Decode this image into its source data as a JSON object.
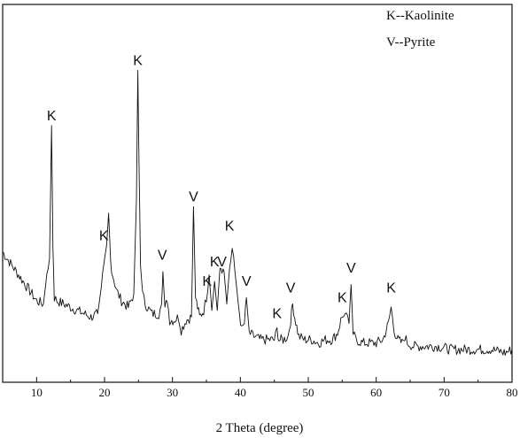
{
  "chart_data": {
    "type": "line",
    "xlabel": "2 Theta (degree)",
    "ylabel": "",
    "xlim": [
      5,
      80
    ],
    "ylim": [
      0,
      100
    ],
    "x_ticks": [
      "10",
      "20",
      "30",
      "40",
      "50",
      "60",
      "70",
      "80"
    ],
    "x_tick_values": [
      10,
      20,
      30,
      40,
      50,
      60,
      70,
      80
    ],
    "grid": false,
    "legend_position": "top-right",
    "legend": [
      "K--Kaolinite",
      "V--Pyrite"
    ],
    "series": [
      {
        "color": "#111111",
        "x": [
          5,
          6,
          7,
          8,
          9,
          10,
          11,
          11.5,
          11.9,
          12.2,
          12.4,
          12.6,
          13,
          14,
          15,
          16,
          17,
          18,
          19,
          19.7,
          20.0,
          20.3,
          20.6,
          20.9,
          21.2,
          21.8,
          22.5,
          23.5,
          24.3,
          24.7,
          24.9,
          25.1,
          25.3,
          25.6,
          26.0,
          27.0,
          28.0,
          28.4,
          28.6,
          28.9,
          29.2,
          29.6,
          30.2,
          30.9,
          31.3,
          32.0,
          32.8,
          33.1,
          33.4,
          34.0,
          34.6,
          35.0,
          35.4,
          35.8,
          36.2,
          36.6,
          37.0,
          37.6,
          38.0,
          38.4,
          38.8,
          39.2,
          39.7,
          40.2,
          40.6,
          40.9,
          41.3,
          42.0,
          43.0,
          44.0,
          45.0,
          45.4,
          45.7,
          46.3,
          47.0,
          47.4,
          47.7,
          48.0,
          48.6,
          49.5,
          50.5,
          51.5,
          52.5,
          53.5,
          54.3,
          54.8,
          55.2,
          55.6,
          56.0,
          56.3,
          56.6,
          57.0,
          58.0,
          59.0,
          60.0,
          61.0,
          61.8,
          62.2,
          62.6,
          63.2,
          63.8,
          64.2,
          64.6,
          65.5,
          67.0,
          69.0,
          71.0,
          73.0,
          75.0,
          77.0,
          79.0,
          80.0
        ],
        "y": [
          36,
          33,
          30,
          27,
          24,
          21,
          20,
          29,
          34,
          75,
          38,
          22,
          21,
          20,
          19,
          18,
          17,
          16,
          17,
          28,
          33,
          38,
          48,
          33,
          29,
          24,
          21,
          19,
          23,
          52,
          92,
          60,
          32,
          23,
          20,
          17,
          17,
          20,
          30,
          18,
          22,
          15,
          15,
          16,
          12,
          15,
          16,
          50,
          22,
          16,
          18,
          22,
          29,
          18,
          27,
          18,
          32,
          30,
          20,
          31,
          37,
          30,
          20,
          12,
          14,
          22,
          11,
          10,
          9,
          9,
          9,
          12,
          9,
          9,
          10,
          15,
          20,
          16,
          10,
          9,
          9,
          8,
          9,
          9,
          11,
          15,
          17,
          16,
          14,
          26,
          11,
          9,
          8,
          8,
          8,
          9,
          14,
          19,
          12,
          9,
          8,
          10,
          8,
          7,
          7,
          7,
          6,
          6,
          6,
          6,
          5,
          6
        ]
      }
    ],
    "annotations": [
      {
        "text": "K",
        "x": 12.2,
        "y": 75
      },
      {
        "text": "K",
        "x": 19.9,
        "y": 38
      },
      {
        "text": "K",
        "x": 24.9,
        "y": 92
      },
      {
        "text": "V",
        "x": 28.5,
        "y": 32
      },
      {
        "text": "V",
        "x": 33.1,
        "y": 50
      },
      {
        "text": "K",
        "x": 35.1,
        "y": 24
      },
      {
        "text": "K",
        "x": 36.2,
        "y": 30
      },
      {
        "text": "V",
        "x": 37.3,
        "y": 30
      },
      {
        "text": "K",
        "x": 38.4,
        "y": 41
      },
      {
        "text": "V",
        "x": 40.9,
        "y": 24
      },
      {
        "text": "K",
        "x": 45.4,
        "y": 14
      },
      {
        "text": "V",
        "x": 47.4,
        "y": 22
      },
      {
        "text": "K",
        "x": 55.0,
        "y": 19
      },
      {
        "text": "V",
        "x": 56.3,
        "y": 28
      },
      {
        "text": "K",
        "x": 62.2,
        "y": 22
      }
    ]
  }
}
